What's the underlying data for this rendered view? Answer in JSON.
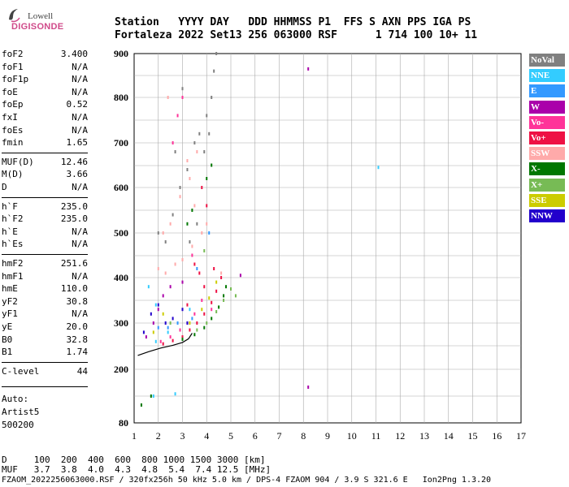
{
  "logo": {
    "line1": "Lowell",
    "line2": "DIGISONDE"
  },
  "header": {
    "row1": "Station   YYYY DAY   DDD HHMMSS P1  FFS S AXN PPS IGA PS",
    "row2": "Fortaleza 2022 Set13 256 063000 RSF      1 714 100 10+ 11"
  },
  "params": [
    {
      "k": "foF2",
      "v": "3.400"
    },
    {
      "k": "foF1",
      "v": "N/A"
    },
    {
      "k": "foF1p",
      "v": "N/A"
    },
    {
      "k": "foE",
      "v": "N/A"
    },
    {
      "k": "foEp",
      "v": "0.52"
    },
    {
      "k": "fxI",
      "v": "N/A"
    },
    {
      "k": "foEs",
      "v": "N/A"
    },
    {
      "k": "fmin",
      "v": "1.65"
    },
    {
      "k": "MUF(D)",
      "v": "12.46"
    },
    {
      "k": "M(D)",
      "v": "3.66"
    },
    {
      "k": "D",
      "v": "N/A"
    },
    {
      "k": "h`F",
      "v": "235.0"
    },
    {
      "k": "h`F2",
      "v": "235.0"
    },
    {
      "k": "h`E",
      "v": "N/A"
    },
    {
      "k": "h`Es",
      "v": "N/A"
    },
    {
      "k": "hmF2",
      "v": "251.6"
    },
    {
      "k": "hmF1",
      "v": "N/A"
    },
    {
      "k": "hmE",
      "v": "110.0"
    },
    {
      "k": "yF2",
      "v": "30.8"
    },
    {
      "k": "yF1",
      "v": "N/A"
    },
    {
      "k": "yE",
      "v": "20.0"
    },
    {
      "k": "B0",
      "v": "32.8"
    },
    {
      "k": "B1",
      "v": "1.74"
    },
    {
      "k": "C-level",
      "v": "44"
    }
  ],
  "notes": {
    "auto": "Auto:",
    "artist": "Artist5",
    "code": "500200"
  },
  "legend": [
    {
      "label": "NoVal",
      "color": "#808080"
    },
    {
      "label": "NNE",
      "color": "#33ccff"
    },
    {
      "label": "E",
      "color": "#3399ff"
    },
    {
      "label": "W",
      "color": "#aa00aa"
    },
    {
      "label": "Vo-",
      "color": "#ff3399"
    },
    {
      "label": "Vo+",
      "color": "#ee1144"
    },
    {
      "label": "SSW",
      "color": "#ffaaaa"
    },
    {
      "label": "X-",
      "color": "#007700"
    },
    {
      "label": "X+",
      "color": "#77bb55"
    },
    {
      "label": "SSE",
      "color": "#cccc00"
    },
    {
      "label": "NNW",
      "color": "#2200cc"
    }
  ],
  "bottom": {
    "d_row": "D     100  200  400  600  800 1000 1500 3000 [km]",
    "muf_row": "MUF   3.7  3.8  4.0  4.3  4.8  5.4  7.4 12.5 [MHz]",
    "file_row": "FZAOM_2022256063000.RSF / 320fx256h 50 kHz 5.0 km / DPS-4 FZAOM 904 / 3.9 S 321.6 E   Ion2Png 1.3.20"
  },
  "chart_data": {
    "type": "scatter",
    "title": "",
    "xlabel": "",
    "ylabel": "",
    "xlim": [
      1,
      17
    ],
    "ylim": [
      80,
      900
    ],
    "x_ticks": [
      "1",
      "2",
      "3",
      "4",
      "5",
      "6",
      "7",
      "8",
      "9",
      "10",
      "11",
      "12",
      "13",
      "14",
      "15",
      "16",
      "17"
    ],
    "y_ticks": [
      "80",
      "200",
      "300",
      "400",
      "500",
      "600",
      "700",
      "800",
      "900"
    ],
    "grid": true,
    "legend_position": "right",
    "series": [
      {
        "name": "Vo+",
        "color": "#ee1144",
        "points": [
          [
            2.2,
            255
          ],
          [
            2.6,
            262
          ],
          [
            3.0,
            270
          ],
          [
            3.3,
            285
          ],
          [
            3.6,
            300
          ],
          [
            3.9,
            320
          ],
          [
            4.2,
            345
          ],
          [
            4.4,
            370
          ],
          [
            4.6,
            400
          ],
          [
            3.8,
            600
          ],
          [
            4.0,
            560
          ],
          [
            3.5,
            430
          ],
          [
            3.7,
            410
          ],
          [
            3.2,
            340
          ],
          [
            3.9,
            380
          ],
          [
            4.3,
            420
          ]
        ]
      },
      {
        "name": "Vo-",
        "color": "#ff3399",
        "points": [
          [
            2.1,
            260
          ],
          [
            2.5,
            270
          ],
          [
            2.9,
            285
          ],
          [
            3.2,
            300
          ],
          [
            3.5,
            320
          ],
          [
            3.8,
            350
          ],
          [
            2.8,
            760
          ],
          [
            3.0,
            800
          ],
          [
            2.6,
            700
          ],
          [
            4.2,
            330
          ],
          [
            3.4,
            450
          ]
        ]
      },
      {
        "name": "X-",
        "color": "#007700",
        "points": [
          [
            3.0,
            265
          ],
          [
            3.5,
            275
          ],
          [
            3.9,
            290
          ],
          [
            4.2,
            310
          ],
          [
            4.5,
            335
          ],
          [
            4.7,
            360
          ],
          [
            4.8,
            380
          ],
          [
            1.7,
            140
          ],
          [
            1.3,
            120
          ],
          [
            3.2,
            520
          ],
          [
            3.4,
            550
          ],
          [
            4.0,
            620
          ],
          [
            4.2,
            650
          ]
        ]
      },
      {
        "name": "X+",
        "color": "#77bb55",
        "points": [
          [
            3.6,
            285
          ],
          [
            4.0,
            300
          ],
          [
            4.4,
            325
          ],
          [
            4.7,
            350
          ],
          [
            5.0,
            375
          ],
          [
            5.2,
            360
          ],
          [
            3.9,
            460
          ],
          [
            2.5,
            300
          ]
        ]
      },
      {
        "name": "W",
        "color": "#aa00aa",
        "points": [
          [
            1.5,
            270
          ],
          [
            1.8,
            300
          ],
          [
            2.0,
            330
          ],
          [
            2.2,
            360
          ],
          [
            2.5,
            380
          ],
          [
            3.0,
            390
          ],
          [
            8.2,
            865
          ],
          [
            8.2,
            160
          ],
          [
            5.4,
            405
          ]
        ]
      },
      {
        "name": "NNE",
        "color": "#33ccff",
        "points": [
          [
            1.6,
            380
          ],
          [
            1.9,
            340
          ],
          [
            1.9,
            260
          ],
          [
            2.4,
            280
          ],
          [
            3.3,
            330
          ],
          [
            1.8,
            140
          ],
          [
            2.7,
            145
          ],
          [
            11.1,
            645
          ]
        ]
      },
      {
        "name": "E",
        "color": "#3399ff",
        "points": [
          [
            2.4,
            290
          ],
          [
            2.8,
            300
          ],
          [
            3.4,
            310
          ],
          [
            3.6,
            420
          ],
          [
            2.0,
            290
          ],
          [
            4.1,
            500
          ]
        ]
      },
      {
        "name": "NNW",
        "color": "#2200cc",
        "points": [
          [
            1.4,
            280
          ],
          [
            1.7,
            320
          ],
          [
            2.0,
            340
          ],
          [
            2.3,
            300
          ],
          [
            2.6,
            310
          ],
          [
            3.0,
            330
          ],
          [
            3.2,
            300
          ]
        ]
      },
      {
        "name": "SSW",
        "color": "#ffaaaa",
        "points": [
          [
            2.0,
            420
          ],
          [
            2.3,
            410
          ],
          [
            2.7,
            430
          ],
          [
            3.0,
            440
          ],
          [
            3.4,
            470
          ],
          [
            3.8,
            500
          ],
          [
            4.0,
            520
          ],
          [
            2.5,
            520
          ],
          [
            2.9,
            580
          ],
          [
            3.3,
            620
          ],
          [
            3.6,
            680
          ],
          [
            2.4,
            800
          ],
          [
            3.5,
            560
          ],
          [
            4.6,
            410
          ],
          [
            2.2,
            500
          ],
          [
            3.2,
            660
          ]
        ]
      },
      {
        "name": "SSE",
        "color": "#cccc00",
        "points": [
          [
            3.3,
            300
          ],
          [
            3.8,
            330
          ],
          [
            4.1,
            355
          ],
          [
            4.4,
            390
          ],
          [
            2.2,
            320
          ],
          [
            1.8,
            280
          ]
        ]
      },
      {
        "name": "NoVal",
        "color": "#808080",
        "points": [
          [
            2.0,
            500
          ],
          [
            2.3,
            480
          ],
          [
            2.6,
            540
          ],
          [
            2.9,
            600
          ],
          [
            3.2,
            640
          ],
          [
            3.5,
            700
          ],
          [
            3.7,
            720
          ],
          [
            4.0,
            760
          ],
          [
            4.2,
            800
          ],
          [
            4.3,
            860
          ],
          [
            4.4,
            900
          ],
          [
            3.0,
            820
          ],
          [
            2.7,
            680
          ],
          [
            3.9,
            680
          ],
          [
            4.1,
            720
          ],
          [
            3.3,
            480
          ],
          [
            3.6,
            520
          ]
        ]
      }
    ],
    "trace": [
      [
        1.15,
        230
      ],
      [
        1.6,
        238
      ],
      [
        2.1,
        246
      ],
      [
        2.6,
        252
      ],
      [
        3.0,
        258
      ],
      [
        3.25,
        266
      ],
      [
        3.4,
        278
      ]
    ]
  }
}
